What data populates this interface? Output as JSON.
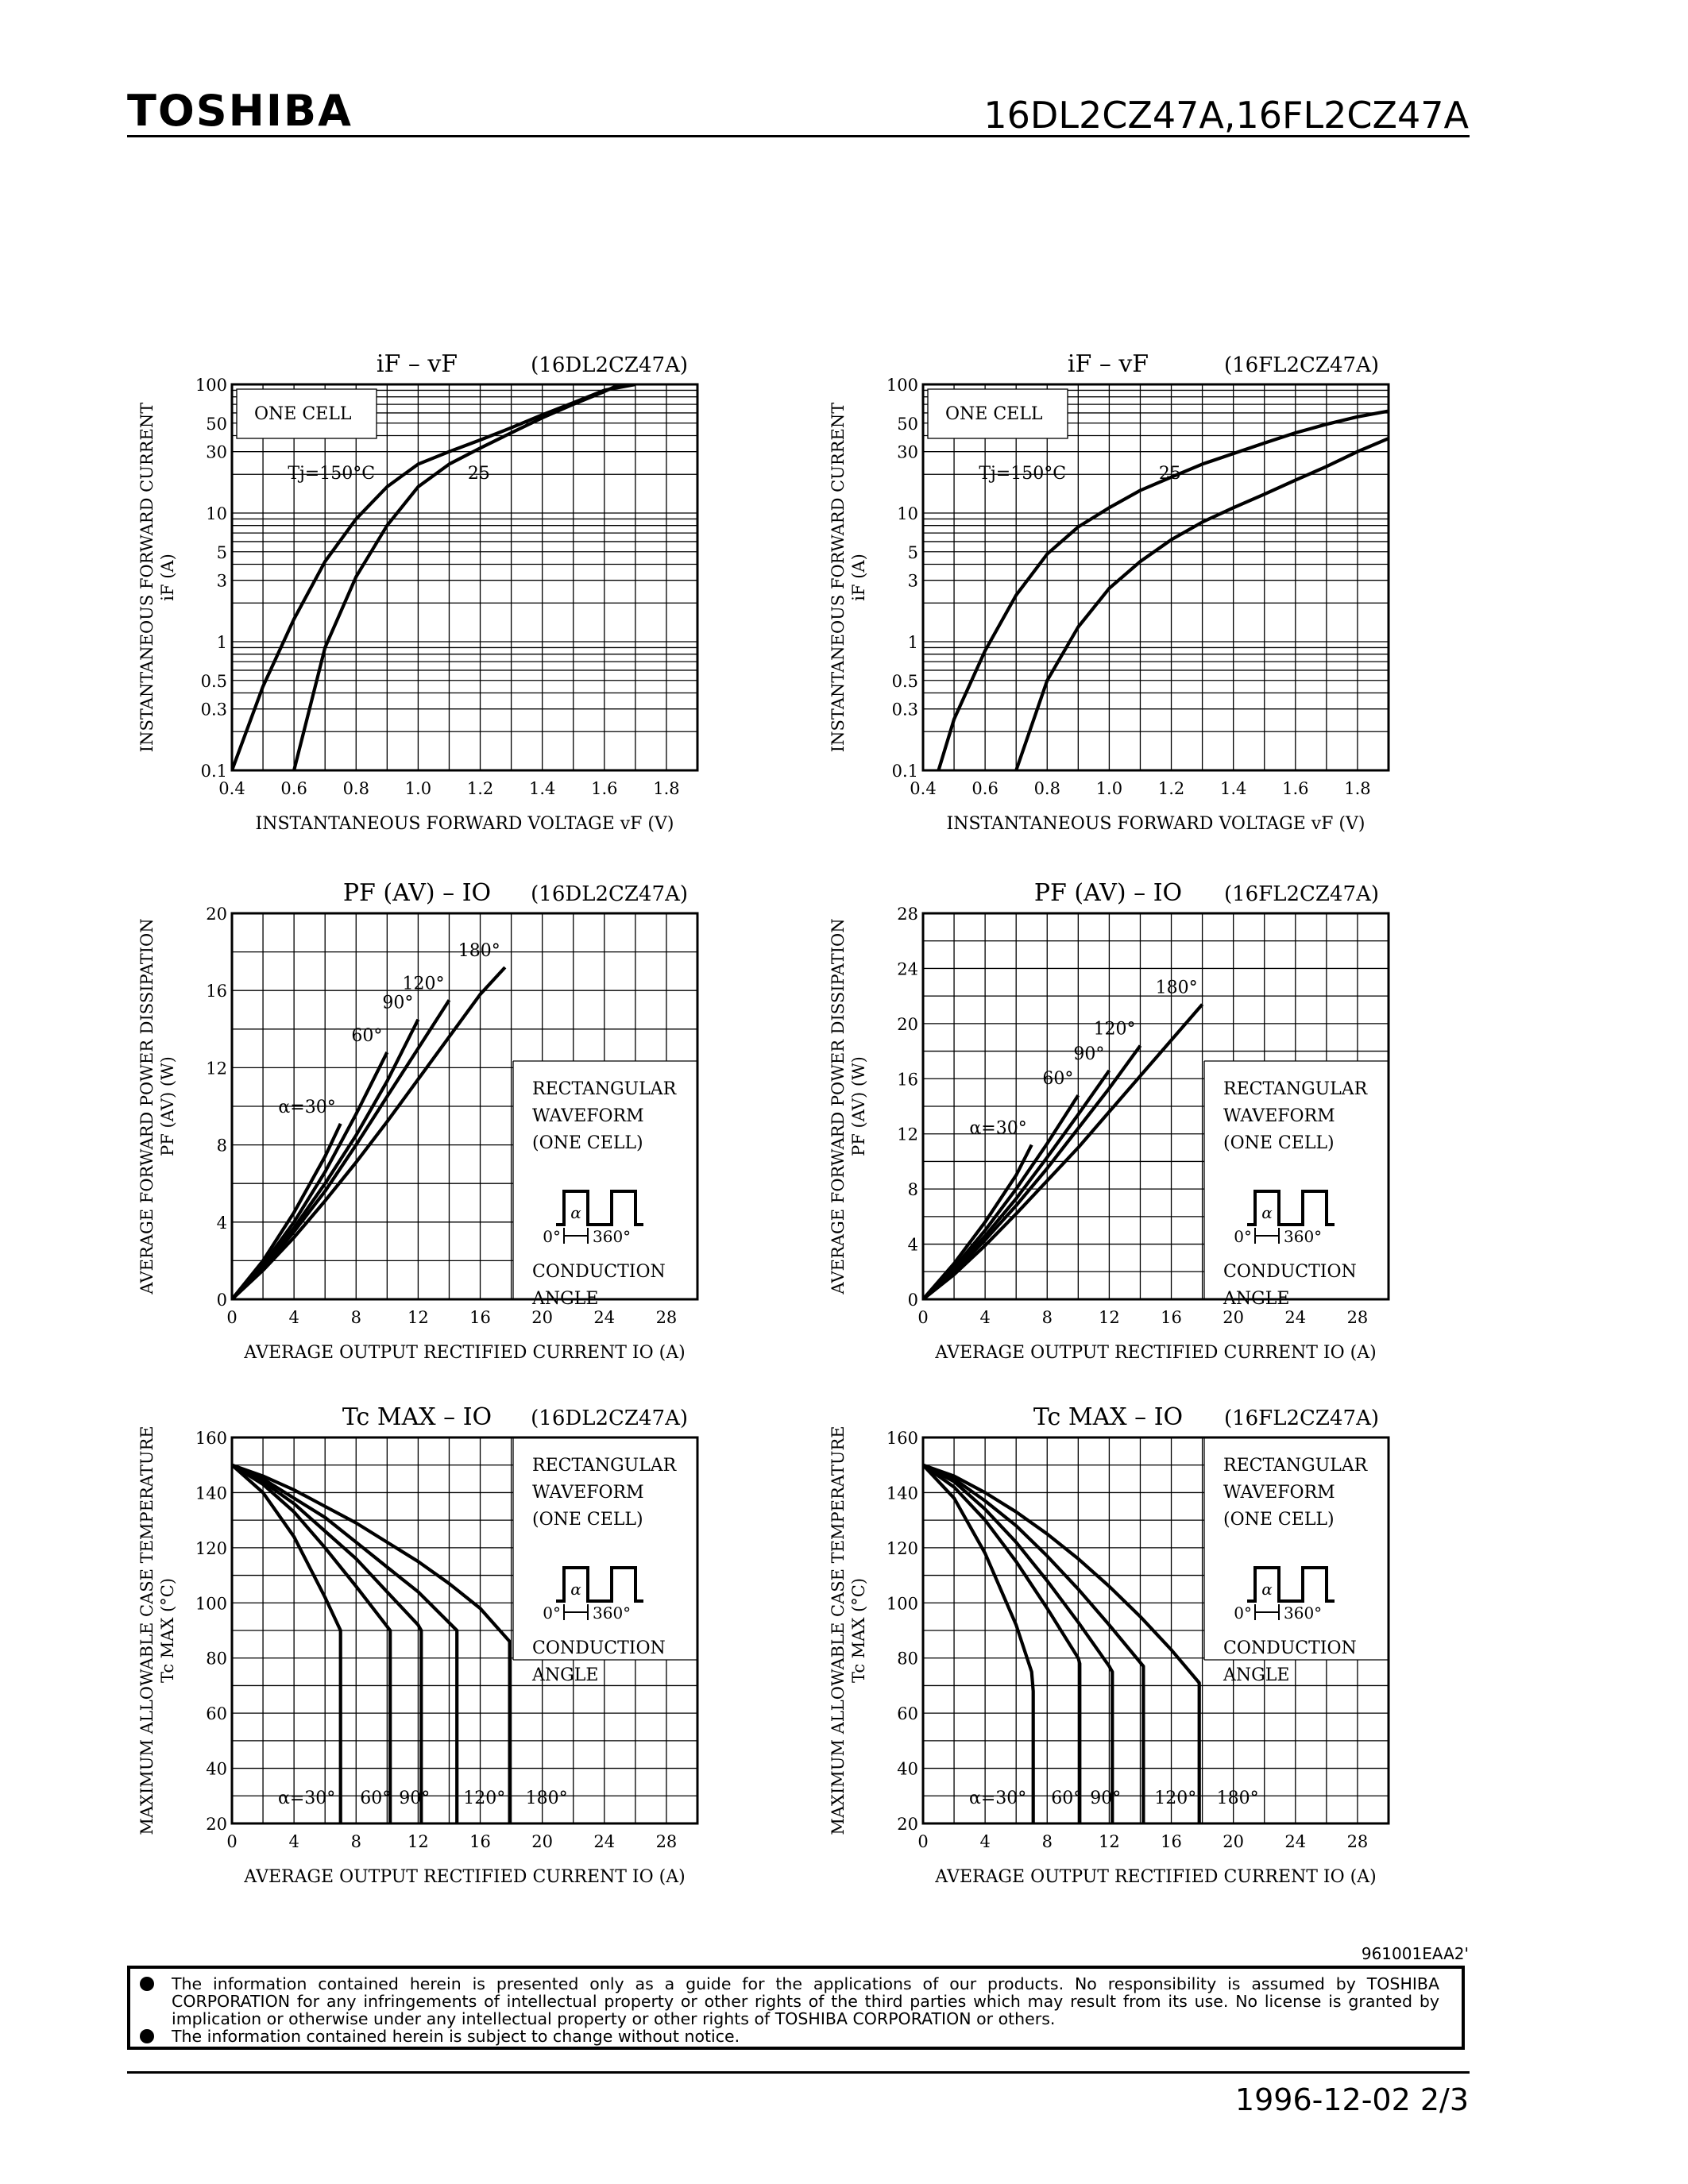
{
  "header": {
    "brand": "TOSHIBA",
    "part_numbers": "16DL2CZ47A,16FL2CZ47A"
  },
  "footer": {
    "doc_code": "961001EAA2'",
    "disclaimer_1": "The information contained herein is presented only as a guide for the applications of our products. No responsibility is assumed by TOSHIBA CORPORATION for any infringements of intellectual property or other rights of the third parties which may result from its use. No license is granted by implication or otherwise under any intellectual property or other rights of TOSHIBA CORPORATION or others.",
    "disclaimer_2": "The information contained herein is subject to change without notice.",
    "date_page": "1996-12-02   2/3"
  },
  "chart_data": [
    {
      "id": "if-vf-dl",
      "type": "line",
      "scale_y": "log",
      "title": "iF – vF",
      "part": "(16DL2CZ47A)",
      "xlabel": "INSTANTANEOUS FORWARD VOLTAGE  vF  (V)",
      "ylabel": "INSTANTANEOUS FORWARD CURRENT",
      "ylabel2": "iF  (A)",
      "xlim": [
        0.4,
        1.9
      ],
      "ylim": [
        0.1,
        100
      ],
      "xticks": [
        "0.4",
        "0.6",
        "0.8",
        "1.0",
        "1.2",
        "1.4",
        "1.6",
        "1.8"
      ],
      "yticks": [
        "0.1",
        "0.3",
        "0.5",
        "1",
        "3",
        "5",
        "10",
        "30",
        "50",
        "100"
      ],
      "box_label": "ONE CELL",
      "annotations": [
        "Tj=150°C",
        "25"
      ],
      "series": [
        {
          "x": [
            0.4,
            0.5,
            0.6,
            0.7,
            0.8,
            0.9,
            1.0,
            1.1,
            1.2,
            1.3,
            1.4,
            1.5,
            1.6,
            1.7
          ],
          "y": [
            0.1,
            0.45,
            1.5,
            4.2,
            9,
            16,
            24,
            30,
            37,
            46,
            58,
            72,
            90,
            100
          ]
        },
        {
          "x": [
            0.6,
            0.7,
            0.8,
            0.9,
            1.0,
            1.1,
            1.2,
            1.3,
            1.4,
            1.5,
            1.6,
            1.65
          ],
          "y": [
            0.1,
            0.9,
            3.2,
            8,
            16,
            24,
            32,
            42,
            55,
            70,
            88,
            100
          ]
        }
      ]
    },
    {
      "id": "if-vf-fl",
      "type": "line",
      "scale_y": "log",
      "title": "iF – vF",
      "part": "(16FL2CZ47A)",
      "xlabel": "INSTANTANEOUS FORWARD VOLTAGE  vF  (V)",
      "ylabel": "INSTANTANEOUS FORWARD CURRENT",
      "ylabel2": "iF  (A)",
      "xlim": [
        0.4,
        1.9
      ],
      "ylim": [
        0.1,
        100
      ],
      "xticks": [
        "0.4",
        "0.6",
        "0.8",
        "1.0",
        "1.2",
        "1.4",
        "1.6",
        "1.8"
      ],
      "yticks": [
        "0.1",
        "0.3",
        "0.5",
        "1",
        "3",
        "5",
        "10",
        "30",
        "50",
        "100"
      ],
      "box_label": "ONE CELL",
      "annotations": [
        "Tj=150°C",
        "25"
      ],
      "series": [
        {
          "x": [
            0.45,
            0.5,
            0.6,
            0.7,
            0.8,
            0.9,
            1.0,
            1.1,
            1.2,
            1.3,
            1.4,
            1.5,
            1.6,
            1.7,
            1.8,
            1.9
          ],
          "y": [
            0.1,
            0.25,
            0.85,
            2.3,
            4.8,
            7.8,
            11,
            15,
            19,
            24,
            29,
            35,
            42,
            49,
            56,
            62
          ]
        },
        {
          "x": [
            0.7,
            0.8,
            0.9,
            1.0,
            1.1,
            1.2,
            1.3,
            1.4,
            1.5,
            1.6,
            1.7,
            1.8,
            1.9
          ],
          "y": [
            0.1,
            0.5,
            1.3,
            2.6,
            4.2,
            6.2,
            8.5,
            11,
            14,
            18,
            23,
            30,
            38
          ]
        }
      ]
    },
    {
      "id": "pf-io-dl",
      "type": "line",
      "title": "PF (AV) – IO",
      "part": "(16DL2CZ47A)",
      "xlabel": "AVERAGE OUTPUT RECTIFIED CURRENT  IO  (A)",
      "ylabel": "AVERAGE FORWARD POWER DISSIPATION",
      "ylabel2": "PF (AV)  (W)",
      "xlim": [
        0,
        30
      ],
      "ylim": [
        0,
        20
      ],
      "xticks": [
        "0",
        "4",
        "8",
        "12",
        "16",
        "20",
        "24",
        "28"
      ],
      "yticks": [
        "0",
        "4",
        "8",
        "12",
        "16",
        "20"
      ],
      "annotations": [
        "α=30°",
        "60°",
        "90°",
        "120°",
        "180°"
      ],
      "waveform": {
        "lines": [
          "RECTANGULAR",
          "WAVEFORM",
          "(ONE CELL)"
        ],
        "alpha": "α",
        "zero": "0°",
        "full": "360°",
        "cond": [
          "CONDUCTION",
          "ANGLE"
        ]
      },
      "series": [
        {
          "name": "30°",
          "x": [
            0,
            2,
            4,
            6,
            7
          ],
          "y": [
            0,
            2.0,
            4.5,
            7.4,
            9.1
          ]
        },
        {
          "name": "60°",
          "x": [
            0,
            2,
            4,
            6,
            8,
            10
          ],
          "y": [
            0,
            1.8,
            4.0,
            6.6,
            9.6,
            12.8
          ]
        },
        {
          "name": "90°",
          "x": [
            0,
            2,
            4,
            6,
            8,
            10,
            12
          ],
          "y": [
            0,
            1.7,
            3.7,
            6.0,
            8.5,
            11.3,
            14.5
          ]
        },
        {
          "name": "120°",
          "x": [
            0,
            2,
            4,
            6,
            8,
            10,
            12,
            14
          ],
          "y": [
            0,
            1.6,
            3.5,
            5.6,
            8.0,
            10.5,
            13.0,
            15.5
          ]
        },
        {
          "name": "180°",
          "x": [
            0,
            2,
            4,
            6,
            8,
            10,
            12,
            14,
            16,
            17.6
          ],
          "y": [
            0,
            1.5,
            3.2,
            5.1,
            7.1,
            9.2,
            11.4,
            13.6,
            15.8,
            17.2
          ]
        }
      ]
    },
    {
      "id": "pf-io-fl",
      "type": "line",
      "title": "PF (AV) – IO",
      "part": "(16FL2CZ47A)",
      "xlabel": "AVERAGE OUTPUT RECTIFIED CURRENT  IO  (A)",
      "ylabel": "AVERAGE FORWARD POWER DISSIPATION",
      "ylabel2": "PF (AV)  (W)",
      "xlim": [
        0,
        30
      ],
      "ylim": [
        0,
        28
      ],
      "xticks": [
        "0",
        "4",
        "8",
        "12",
        "16",
        "20",
        "24",
        "28"
      ],
      "yticks": [
        "0",
        "4",
        "8",
        "12",
        "16",
        "20",
        "24",
        "28"
      ],
      "annotations": [
        "α=30°",
        "60°",
        "90°",
        "120°",
        "180°"
      ],
      "waveform": {
        "lines": [
          "RECTANGULAR",
          "WAVEFORM",
          "(ONE CELL)"
        ],
        "alpha": "α",
        "zero": "0°",
        "full": "360°",
        "cond": [
          "CONDUCTION",
          "ANGLE"
        ]
      },
      "series": [
        {
          "name": "30°",
          "x": [
            0,
            2,
            4,
            6,
            7
          ],
          "y": [
            0,
            2.6,
            5.6,
            9.0,
            11.2
          ]
        },
        {
          "name": "60°",
          "x": [
            0,
            2,
            4,
            6,
            8,
            10
          ],
          "y": [
            0,
            2.3,
            5.0,
            8.0,
            11.3,
            14.8
          ]
        },
        {
          "name": "90°",
          "x": [
            0,
            2,
            4,
            6,
            8,
            10,
            12
          ],
          "y": [
            0,
            2.1,
            4.6,
            7.3,
            10.3,
            13.4,
            16.6
          ]
        },
        {
          "name": "120°",
          "x": [
            0,
            2,
            4,
            6,
            8,
            10,
            12,
            14
          ],
          "y": [
            0,
            2.0,
            4.3,
            6.8,
            9.5,
            12.4,
            15.3,
            18.4
          ]
        },
        {
          "name": "180°",
          "x": [
            0,
            2,
            4,
            6,
            8,
            10,
            12,
            14,
            16,
            18
          ],
          "y": [
            0,
            1.8,
            3.9,
            6.2,
            8.6,
            11.0,
            13.6,
            16.2,
            18.8,
            21.4
          ]
        }
      ]
    },
    {
      "id": "tc-io-dl",
      "type": "line",
      "title": "Tc MAX – IO",
      "part": "(16DL2CZ47A)",
      "xlabel": "AVERAGE OUTPUT RECTIFIED CURRENT  IO  (A)",
      "ylabel": "MAXIMUM ALLOWABLE CASE TEMPERATURE",
      "ylabel2": "Tc MAX  (°C)",
      "xlim": [
        0,
        30
      ],
      "ylim": [
        20,
        160
      ],
      "xticks": [
        "0",
        "4",
        "8",
        "12",
        "16",
        "20",
        "24",
        "28"
      ],
      "yticks": [
        "20",
        "40",
        "60",
        "80",
        "100",
        "120",
        "140",
        "160"
      ],
      "annotations": [
        "α=30°",
        "60°",
        "90°",
        "120°",
        "180°"
      ],
      "waveform": {
        "lines": [
          "RECTANGULAR",
          "WAVEFORM",
          "(ONE CELL)"
        ],
        "alpha": "α",
        "zero": "0°",
        "full": "360°",
        "cond": [
          "CONDUCTION",
          "ANGLE"
        ]
      },
      "series": [
        {
          "name": "30°",
          "x": [
            0,
            2,
            4,
            6,
            7,
            7
          ],
          "y": [
            150,
            140,
            124,
            102,
            90,
            20
          ]
        },
        {
          "name": "60°",
          "x": [
            0,
            2,
            4,
            6,
            8,
            10.2,
            10.2
          ],
          "y": [
            150,
            143,
            133,
            120,
            106,
            90,
            20
          ]
        },
        {
          "name": "90°",
          "x": [
            0,
            2,
            4,
            6,
            8,
            10,
            12,
            12.2,
            12.2
          ],
          "y": [
            150,
            144,
            136,
            126,
            116,
            104,
            92,
            90,
            20
          ]
        },
        {
          "name": "120°",
          "x": [
            0,
            2,
            4,
            6,
            8,
            10,
            12,
            14.5,
            14.5
          ],
          "y": [
            150,
            145,
            138,
            131,
            122,
            113,
            104,
            90,
            20
          ]
        },
        {
          "name": "180°",
          "x": [
            0,
            2,
            4,
            6,
            8,
            10,
            12,
            14,
            16,
            17.9,
            17.9
          ],
          "y": [
            150,
            146,
            141,
            135,
            129,
            122,
            115,
            107,
            98,
            86,
            20
          ]
        }
      ]
    },
    {
      "id": "tc-io-fl",
      "type": "line",
      "title": "Tc MAX – IO",
      "part": "(16FL2CZ47A)",
      "xlabel": "AVERAGE OUTPUT RECTIFIED CURRENT  IO  (A)",
      "ylabel": "MAXIMUM ALLOWABLE CASE TEMPERATURE",
      "ylabel2": "Tc MAX  (°C)",
      "xlim": [
        0,
        30
      ],
      "ylim": [
        20,
        160
      ],
      "xticks": [
        "0",
        "4",
        "8",
        "12",
        "16",
        "20",
        "24",
        "28"
      ],
      "yticks": [
        "20",
        "40",
        "60",
        "80",
        "100",
        "120",
        "140",
        "160"
      ],
      "annotations": [
        "α=30°",
        "60°",
        "90°",
        "120°",
        "180°"
      ],
      "waveform": {
        "lines": [
          "RECTANGULAR",
          "WAVEFORM",
          "(ONE CELL)"
        ],
        "alpha": "α",
        "zero": "0°",
        "full": "360°",
        "cond": [
          "CONDUCTION",
          "ANGLE"
        ]
      },
      "series": [
        {
          "name": "30°",
          "x": [
            0,
            2,
            4,
            6,
            7,
            7.1,
            7.1
          ],
          "y": [
            150,
            138,
            118,
            92,
            75,
            68,
            20
          ]
        },
        {
          "name": "60°",
          "x": [
            0,
            2,
            4,
            6,
            8,
            10,
            10.1,
            10.1
          ],
          "y": [
            150,
            142,
            130,
            115,
            98,
            80,
            78,
            20
          ]
        },
        {
          "name": "90°",
          "x": [
            0,
            2,
            4,
            6,
            8,
            10,
            12,
            12.2,
            12.2
          ],
          "y": [
            150,
            144,
            134,
            122,
            108,
            93,
            77,
            75,
            20
          ]
        },
        {
          "name": "120°",
          "x": [
            0,
            2,
            4,
            6,
            8,
            10,
            12,
            14.2,
            14.2
          ],
          "y": [
            150,
            145,
            137,
            128,
            117,
            105,
            92,
            77,
            20
          ]
        },
        {
          "name": "180°",
          "x": [
            0,
            2,
            4,
            6,
            8,
            10,
            12,
            14,
            16,
            17.8,
            17.8
          ],
          "y": [
            150,
            146,
            140,
            133,
            125,
            116,
            106,
            95,
            83,
            71,
            20
          ]
        }
      ]
    }
  ]
}
